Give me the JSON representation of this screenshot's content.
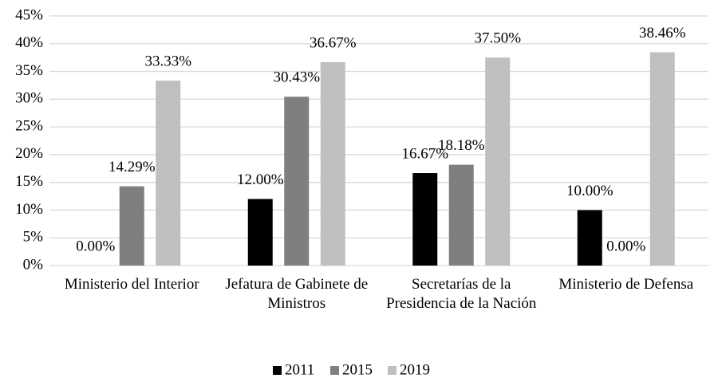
{
  "chart_data": {
    "type": "bar",
    "categories": [
      "Ministerio del Interior",
      "Jefatura de Gabinete de Ministros",
      "Secretarías de la Presidencia de la Nación",
      "Ministerio de Defensa"
    ],
    "series": [
      {
        "name": "2011",
        "color": "#000000",
        "values": [
          0,
          12,
          16.67,
          10
        ],
        "value_labels": [
          "0.00%",
          "12.00%",
          "16.67%",
          "10.00%"
        ]
      },
      {
        "name": "2015",
        "color": "#7f7f7f",
        "values": [
          14.29,
          30.43,
          18.18,
          0
        ],
        "value_labels": [
          "14.29%",
          "30.43%",
          "18.18%",
          "0.00%"
        ]
      },
      {
        "name": "2019",
        "color": "#bfbfbf",
        "values": [
          33.33,
          36.67,
          37.5,
          38.46
        ],
        "value_labels": [
          "33.33%",
          "36.67%",
          "37.50%",
          "38.46%"
        ]
      }
    ],
    "ylim": [
      0,
      45
    ],
    "yticks": [
      {
        "value": 0,
        "label": "0%"
      },
      {
        "value": 5,
        "label": "5%"
      },
      {
        "value": 10,
        "label": "10%"
      },
      {
        "value": 15,
        "label": "15%"
      },
      {
        "value": 20,
        "label": "20%"
      },
      {
        "value": 25,
        "label": "25%"
      },
      {
        "value": 30,
        "label": "30%"
      },
      {
        "value": 35,
        "label": "35%"
      },
      {
        "value": 40,
        "label": "40%"
      },
      {
        "value": 45,
        "label": "45%"
      }
    ],
    "grid": true,
    "legend": "bottom"
  }
}
